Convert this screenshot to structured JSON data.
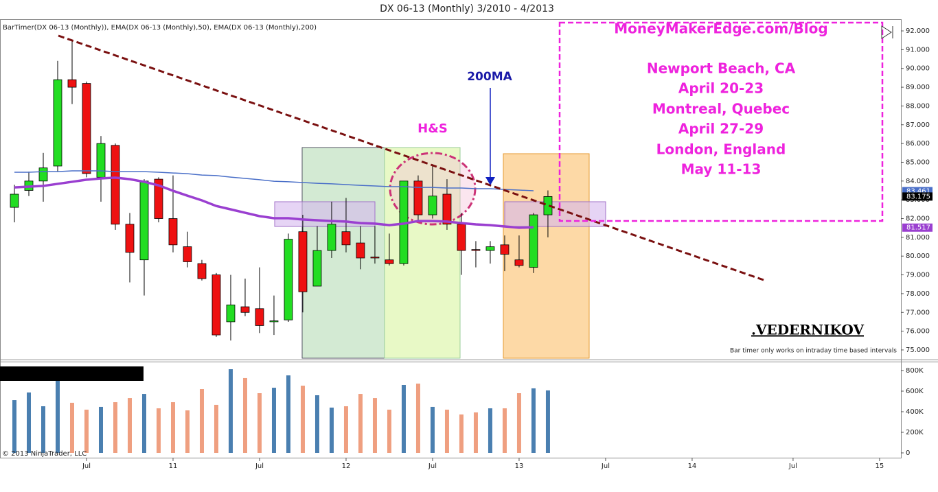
{
  "chart_data": {
    "type": "candlestick",
    "title": "DX 06-13 (Monthly)  3/2010 - 4/2013",
    "indicator_label": "BarTimer(DX 06-13 (Monthly)), EMA(DX 06-13 (Monthly),50), EMA(DX 06-13 (Monthly),200)",
    "open": [
      82.6,
      83.5,
      84.0,
      84.8,
      89.4,
      89.2,
      84.2,
      85.9,
      81.7,
      79.8,
      84.1,
      82.0,
      80.5,
      79.6,
      79.0,
      76.5,
      77.3,
      77.2,
      76.5,
      76.6,
      81.3,
      78.4,
      80.3,
      81.3,
      80.7,
      79.95,
      79.8,
      79.6,
      84.0,
      82.2,
      83.3,
      81.7,
      80.35,
      80.3,
      80.6,
      79.8,
      79.4,
      82.2
    ],
    "high": [
      83.8,
      84.5,
      85.5,
      90.4,
      91.5,
      89.3,
      86.4,
      86.0,
      82.3,
      84.1,
      84.2,
      84.3,
      81.3,
      79.8,
      79.1,
      79.0,
      78.8,
      79.4,
      77.9,
      81.2,
      82.2,
      81.6,
      82.9,
      83.1,
      81.6,
      81.6,
      81.2,
      84.0,
      84.3,
      84.9,
      84.1,
      82.3,
      80.8,
      80.8,
      81.1,
      81.1,
      82.3,
      83.5
    ],
    "low": [
      81.8,
      83.2,
      82.9,
      84.5,
      88.1,
      84.2,
      82.9,
      81.4,
      78.6,
      77.9,
      81.8,
      80.2,
      79.4,
      78.7,
      75.7,
      75.5,
      76.8,
      75.9,
      75.8,
      76.5,
      77.0,
      78.4,
      79.9,
      80.2,
      79.3,
      79.6,
      79.5,
      79.5,
      81.9,
      82.0,
      81.4,
      79.0,
      79.4,
      79.6,
      79.2,
      79.4,
      79.1,
      81.0
    ],
    "close": [
      83.3,
      84.0,
      84.7,
      89.4,
      89.0,
      84.4,
      86.0,
      81.7,
      80.2,
      84.0,
      82.0,
      80.6,
      79.7,
      78.8,
      75.8,
      77.4,
      77.0,
      76.3,
      76.55,
      80.9,
      78.1,
      80.3,
      81.7,
      80.6,
      79.9,
      79.9,
      79.6,
      84.0,
      82.2,
      83.2,
      81.7,
      80.3,
      80.3,
      80.5,
      80.1,
      79.5,
      82.2,
      83.175
    ],
    "volume": [
      513000,
      587000,
      453000,
      700000,
      487000,
      420000,
      447000,
      493000,
      533000,
      573000,
      433000,
      493000,
      413000,
      620000,
      467000,
      813000,
      727000,
      580000,
      633000,
      753000,
      653000,
      560000,
      440000,
      453000,
      573000,
      533000,
      420000,
      660000,
      673000,
      447000,
      420000,
      373000,
      393000,
      433000,
      433000,
      580000,
      627000,
      607000
    ],
    "up_color": "#22dd22",
    "down_color": "#ee1111",
    "volume_up_color": "#4a7fb0",
    "volume_down_color": "#ef9f80",
    "lines": [
      {
        "color": "#4a6fc8",
        "values": [
          84.47,
          84.47,
          84.5,
          84.5,
          84.54,
          84.54,
          84.54,
          84.5,
          84.5,
          84.5,
          84.47,
          84.43,
          84.39,
          84.32,
          84.29,
          84.21,
          84.14,
          84.07,
          83.99,
          83.96,
          83.92,
          83.88,
          83.85,
          83.81,
          83.77,
          83.74,
          83.7,
          83.7,
          83.66,
          83.66,
          83.63,
          83.63,
          83.59,
          83.59,
          83.55,
          83.52,
          83.48,
          null
        ]
      },
      {
        "color": "#9a3fd0",
        "values": [
          83.66,
          83.7,
          83.74,
          83.85,
          83.96,
          84.07,
          84.14,
          84.18,
          84.1,
          83.96,
          83.77,
          83.48,
          83.22,
          82.97,
          82.67,
          82.49,
          82.31,
          82.13,
          82.02,
          82.02,
          81.95,
          81.91,
          81.87,
          81.84,
          81.76,
          81.73,
          81.65,
          81.73,
          81.87,
          81.87,
          81.84,
          81.76,
          81.69,
          81.65,
          81.58,
          81.51,
          81.54,
          null
        ]
      }
    ],
    "price_markers": [
      {
        "value": 83.461,
        "color": "#4a6fc8"
      },
      {
        "value": 83.175,
        "color": "#000000"
      },
      {
        "value": 81.517,
        "color": "#9a3fd0"
      }
    ],
    "ylim": [
      74.56,
      92.55
    ],
    "yticks": [
      {
        "value": 75,
        "label": "75.000"
      },
      {
        "value": 76,
        "label": "76.000"
      },
      {
        "value": 77,
        "label": "77.000"
      },
      {
        "value": 78,
        "label": "78.000"
      },
      {
        "value": 79,
        "label": "79.000"
      },
      {
        "value": 80,
        "label": "80.000"
      },
      {
        "value": 81,
        "label": "81.000"
      },
      {
        "value": 82,
        "label": "82.000"
      },
      {
        "value": 83,
        "label": "83.000"
      },
      {
        "value": 84,
        "label": "84.000"
      },
      {
        "value": 85,
        "label": "85.000"
      },
      {
        "value": 86,
        "label": "86.000"
      },
      {
        "value": 87,
        "label": "87.000"
      },
      {
        "value": 88,
        "label": "88.000"
      },
      {
        "value": 89,
        "label": "89.000"
      },
      {
        "value": 90,
        "label": "90.000"
      },
      {
        "value": 91,
        "label": "91.000"
      },
      {
        "value": 92,
        "label": "92.000"
      }
    ],
    "volume_lim": [
      -46667,
      880000
    ],
    "volume_ticks": [
      0,
      {
        "value": 200000,
        "label": "200K"
      },
      {
        "value": 400000,
        "label": "400K"
      },
      {
        "value": 600000,
        "label": "600K"
      },
      {
        "value": 800000,
        "label": "800K"
      }
    ],
    "xlim": [
      -1,
      61.48
    ],
    "xticks": [
      {
        "value": 5,
        "label": "Jul"
      },
      {
        "value": 11,
        "label": "11"
      },
      {
        "value": 17,
        "label": "Jul"
      },
      {
        "value": 23,
        "label": "12"
      },
      {
        "value": 29,
        "label": "Jul"
      },
      {
        "value": 35,
        "label": "13"
      },
      {
        "value": 41,
        "label": "Jul"
      },
      {
        "value": 47,
        "label": "14"
      },
      {
        "value": 54,
        "label": "Jul"
      },
      {
        "value": 60,
        "label": "15"
      }
    ],
    "annotations": {
      "ma": "200MA",
      "hs": "H&S",
      "author": ".VEDERNIKOV",
      "bar_timer": "Bar timer only works on intraday time based intervals",
      "copyright": "© 2013 NinjaTrader, LLC",
      "events": [
        "MoneyMakerEdge.com/Blog",
        "Newport Beach, CA",
        "April 20-23",
        "Montreal, Quebec",
        "April 27-29",
        "London, England",
        "May 11-13"
      ]
    }
  }
}
